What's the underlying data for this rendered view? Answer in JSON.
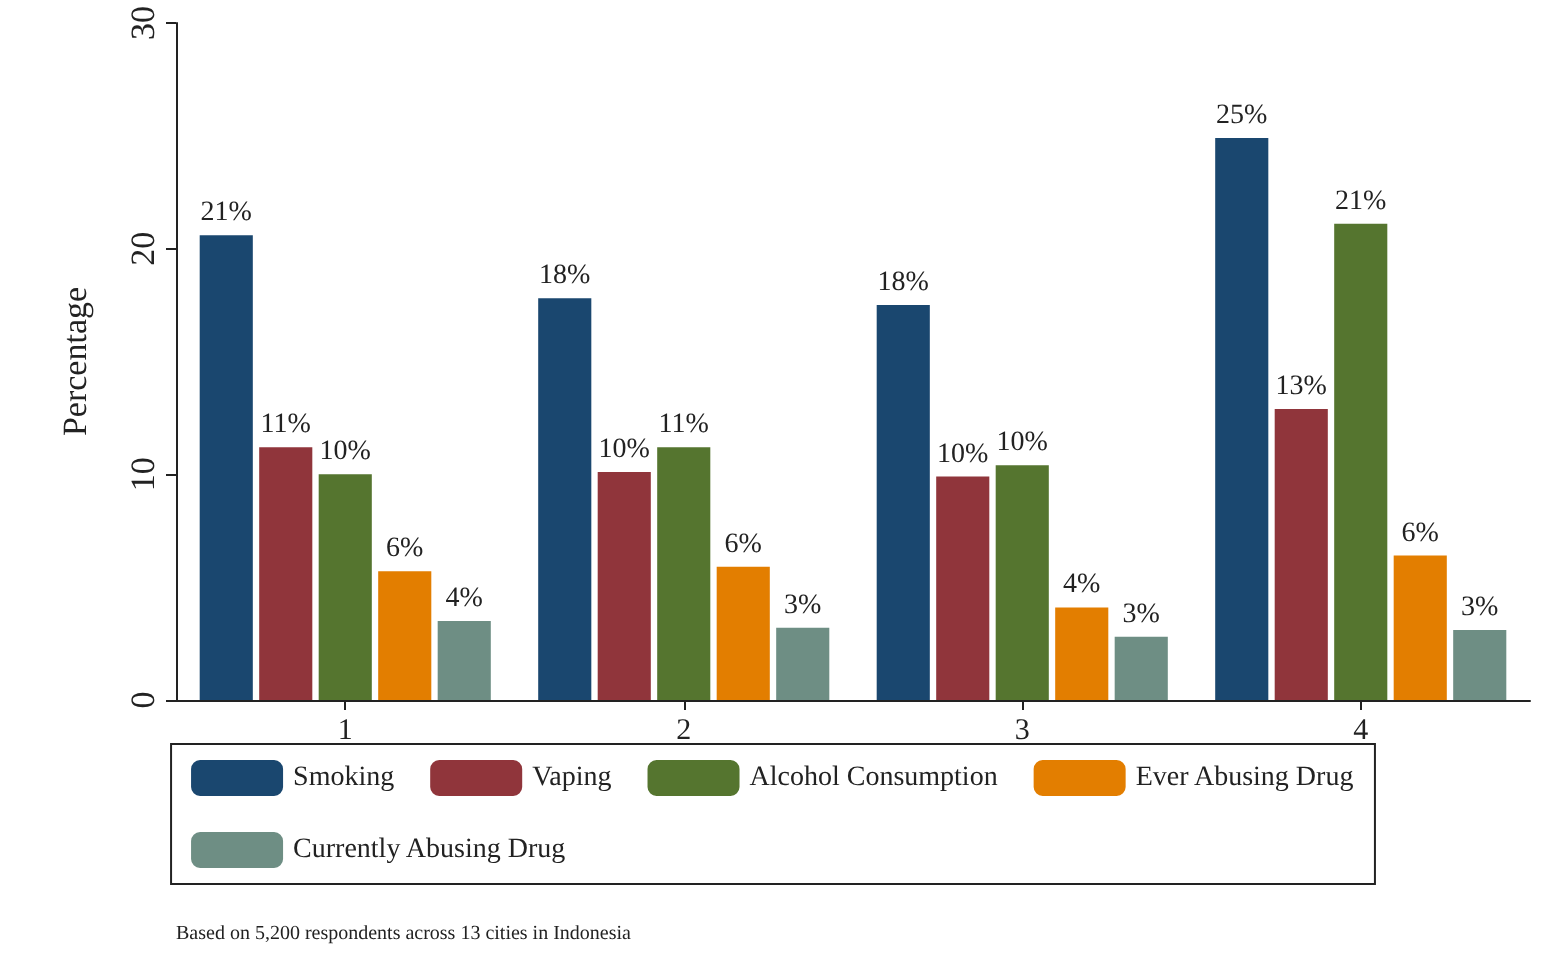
{
  "chart_data": {
    "type": "bar",
    "categories": [
      "1",
      "2",
      "3",
      "4"
    ],
    "ylabel": "Percentage",
    "ylim": [
      0,
      30
    ],
    "yticks": [
      0,
      10,
      20,
      30
    ],
    "grid": false,
    "legend": "bottom",
    "series": [
      {
        "name": "Smoking",
        "color": "#1a476f",
        "values": [
          20.6,
          17.8,
          17.5,
          24.9
        ],
        "value_labels": [
          "21%",
          "18%",
          "18%",
          "25%"
        ]
      },
      {
        "name": "Vaping",
        "color": "#90353b",
        "values": [
          11.2,
          10.1,
          9.9,
          12.9
        ],
        "value_labels": [
          "11%",
          "10%",
          "10%",
          "13%"
        ]
      },
      {
        "name": "Alcohol Consumption",
        "color": "#55752f",
        "values": [
          10.0,
          11.2,
          10.4,
          21.1
        ],
        "value_labels": [
          "10%",
          "11%",
          "10%",
          "21%"
        ]
      },
      {
        "name": "Ever Abusing Drug",
        "color": "#e37e00",
        "values": [
          5.7,
          5.9,
          4.1,
          6.4
        ],
        "value_labels": [
          "6%",
          "6%",
          "4%",
          "6%"
        ]
      },
      {
        "name": "Currently Abusing Drug",
        "color": "#6e8e84",
        "values": [
          3.5,
          3.2,
          2.8,
          3.1
        ],
        "value_labels": [
          "4%",
          "3%",
          "3%",
          "3%"
        ]
      }
    ],
    "annotations": [
      "Based on 5,200 respondents across 13 cities in Indonesia"
    ]
  }
}
